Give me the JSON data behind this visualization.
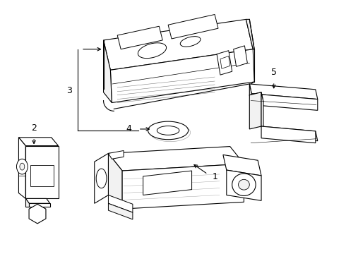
{
  "background_color": "#ffffff",
  "line_color": "#000000",
  "line_width": 0.8,
  "label_fontsize": 9,
  "figsize": [
    4.9,
    3.6
  ],
  "dpi": 100,
  "components": {
    "fob_label": "3",
    "oring_label": "4",
    "sensor_label": "2",
    "bracket_label": "1",
    "hook_label": "5"
  }
}
